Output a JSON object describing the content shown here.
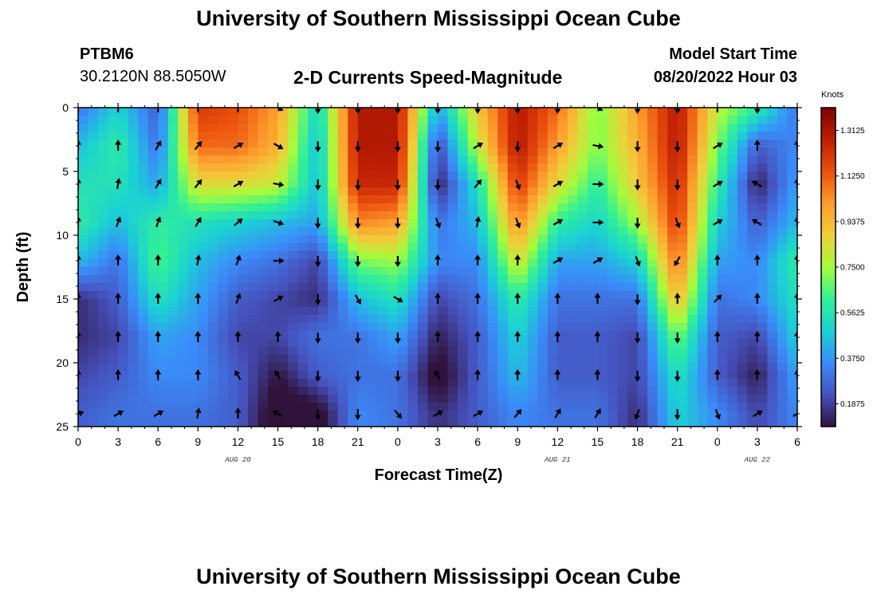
{
  "titles": {
    "top": "University of Southern Mississippi Ocean Cube",
    "bottom": "University of Southern Mississippi Ocean Cube"
  },
  "station": {
    "id": "PTBM6",
    "coords": "30.2120N  88.5050W"
  },
  "model": {
    "label": "Model Start Time",
    "value": "08/20/2022 Hour 03"
  },
  "chart_data": {
    "type": "heatmap",
    "title": "2-D Currents Speed-Magnitude",
    "xlabel": "Forecast Time(Z)",
    "ylabel": "Depth (ft)",
    "x_hours": [
      0,
      3,
      6,
      9,
      12,
      15,
      18,
      21,
      24,
      27,
      30,
      33,
      36,
      39,
      42,
      45,
      48,
      51,
      54
    ],
    "x_tick_labels": [
      "0",
      "3",
      "6",
      "9",
      "12",
      "15",
      "18",
      "21",
      "0",
      "3",
      "6",
      "9",
      "12",
      "15",
      "18",
      "21",
      "0",
      "3",
      "6"
    ],
    "x_range": [
      0,
      54
    ],
    "date_labels": [
      {
        "hour": 12,
        "text": "AUG 20"
      },
      {
        "hour": 36,
        "text": "AUG 21"
      },
      {
        "hour": 51,
        "text": "AUG 22"
      }
    ],
    "y_ticks": [
      0,
      5,
      10,
      15,
      20,
      25
    ],
    "y_tick_labels": [
      "0",
      "5",
      "10",
      "15",
      "20",
      "25"
    ],
    "y_range": [
      0,
      25
    ],
    "depth_ft": [
      0,
      3,
      6,
      9,
      12,
      15,
      18,
      21,
      24
    ],
    "speed_knots": [
      [
        0.3,
        0.5,
        0.25,
        1.2,
        1.15,
        1.0,
        0.5,
        1.3,
        1.3,
        0.4,
        0.9,
        1.3,
        1.1,
        0.7,
        1.0,
        1.3,
        0.8,
        0.6,
        0.3
      ],
      [
        0.45,
        0.6,
        0.3,
        1.1,
        1.1,
        0.95,
        0.45,
        1.3,
        1.3,
        0.2,
        0.8,
        1.3,
        1.0,
        0.7,
        0.95,
        1.3,
        0.7,
        0.25,
        0.35
      ],
      [
        0.55,
        0.55,
        0.4,
        0.85,
        0.85,
        0.8,
        0.45,
        1.25,
        1.25,
        0.12,
        0.55,
        1.2,
        0.85,
        0.6,
        0.9,
        1.25,
        0.6,
        0.12,
        0.4
      ],
      [
        0.6,
        0.45,
        0.6,
        0.55,
        0.5,
        0.45,
        0.4,
        1.05,
        1.0,
        0.3,
        0.45,
        1.05,
        0.6,
        0.5,
        0.75,
        1.2,
        0.5,
        0.25,
        0.45
      ],
      [
        0.45,
        0.3,
        0.65,
        0.45,
        0.35,
        0.3,
        0.2,
        0.7,
        0.75,
        0.35,
        0.35,
        0.85,
        0.4,
        0.4,
        0.5,
        1.1,
        0.4,
        0.35,
        0.6
      ],
      [
        0.15,
        0.25,
        0.55,
        0.4,
        0.25,
        0.2,
        0.15,
        0.45,
        0.55,
        0.2,
        0.3,
        0.6,
        0.3,
        0.3,
        0.3,
        0.95,
        0.3,
        0.35,
        0.55
      ],
      [
        0.15,
        0.2,
        0.4,
        0.35,
        0.2,
        0.2,
        0.3,
        0.3,
        0.4,
        0.12,
        0.25,
        0.5,
        0.25,
        0.25,
        0.2,
        0.7,
        0.25,
        0.2,
        0.5
      ],
      [
        0.2,
        0.25,
        0.35,
        0.35,
        0.25,
        0.1,
        0.25,
        0.3,
        0.3,
        0.05,
        0.25,
        0.45,
        0.25,
        0.25,
        0.2,
        0.55,
        0.25,
        0.12,
        0.4
      ],
      [
        0.25,
        0.3,
        0.3,
        0.3,
        0.25,
        0.02,
        0.05,
        0.35,
        0.3,
        0.15,
        0.25,
        0.35,
        0.3,
        0.3,
        0.15,
        0.5,
        0.35,
        0.2,
        0.35
      ]
    ],
    "direction_deg": [
      [
        360,
        360,
        360,
        360,
        360,
        120,
        180,
        180,
        180,
        180,
        180,
        180,
        180,
        120,
        180,
        180,
        360,
        180,
        360
      ],
      [
        360,
        360,
        30,
        40,
        60,
        120,
        180,
        180,
        180,
        180,
        60,
        180,
        60,
        100,
        180,
        180,
        60,
        360,
        360
      ],
      [
        360,
        10,
        30,
        40,
        60,
        100,
        180,
        180,
        180,
        180,
        40,
        160,
        60,
        90,
        180,
        180,
        60,
        300,
        360
      ],
      [
        360,
        20,
        20,
        30,
        50,
        110,
        180,
        180,
        180,
        160,
        10,
        160,
        60,
        90,
        180,
        160,
        60,
        300,
        360
      ],
      [
        360,
        360,
        360,
        10,
        20,
        90,
        180,
        180,
        180,
        360,
        360,
        360,
        60,
        60,
        160,
        210,
        360,
        360,
        360
      ],
      [
        360,
        360,
        360,
        360,
        20,
        60,
        180,
        150,
        120,
        360,
        360,
        360,
        360,
        360,
        180,
        360,
        45,
        360,
        360
      ],
      [
        360,
        360,
        360,
        360,
        360,
        360,
        180,
        180,
        180,
        360,
        360,
        360,
        360,
        360,
        180,
        180,
        360,
        360,
        360
      ],
      [
        360,
        360,
        360,
        360,
        330,
        330,
        180,
        180,
        180,
        330,
        360,
        360,
        360,
        360,
        180,
        180,
        360,
        360,
        360
      ],
      [
        70,
        60,
        60,
        10,
        360,
        300,
        180,
        180,
        140,
        60,
        60,
        40,
        30,
        30,
        200,
        180,
        160,
        60,
        60
      ]
    ],
    "colorbar": {
      "title": "Knots",
      "min": 0.0938,
      "max": 1.4062,
      "tick_values": [
        0.1875,
        0.375,
        0.5625,
        0.75,
        0.9375,
        1.125,
        1.3125
      ],
      "tick_labels": [
        "0.1875",
        "0.3750",
        "0.5625",
        "0.7500",
        "0.9375",
        "1.1250",
        "1.3125"
      ]
    }
  }
}
